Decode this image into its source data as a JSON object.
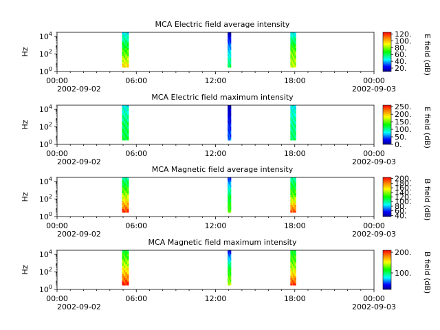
{
  "chart_data": [
    {
      "type": "heatmap",
      "title": "MCA  Electric field average intensity",
      "ylabel": "Hz",
      "y_scale": "log",
      "ylim": [
        1,
        30000
      ],
      "y_ticks": [
        {
          "base": "10",
          "exp": "0"
        },
        {
          "base": "10",
          "exp": "2"
        },
        {
          "base": "10",
          "exp": "4"
        }
      ],
      "x_ticks": [
        "00:00",
        "06:00",
        "12:00",
        "18:00",
        "00:00"
      ],
      "x_dates": {
        "start": "2002-09-02",
        "end": "2002-09-03"
      },
      "xlim": [
        "2002-09-02 00:00",
        "2002-09-03 00:00"
      ],
      "colorbar": {
        "label": "E field (dB)",
        "range": [
          10,
          125
        ],
        "ticks": [
          "20.",
          "40.",
          "60.",
          "80.",
          "100.",
          "120."
        ]
      },
      "bursts": [
        {
          "start": "04:55",
          "end": "05:25",
          "freq_range": [
            3,
            30000
          ],
          "low_db": 95,
          "mid_db": 70,
          "high_db": 45
        },
        {
          "start": "12:55",
          "end": "13:10",
          "freq_range": [
            3,
            30000
          ],
          "low_db": 60,
          "mid_db": 40,
          "high_db": 15
        },
        {
          "start": "17:40",
          "end": "18:05",
          "freq_range": [
            3,
            30000
          ],
          "low_db": 85,
          "mid_db": 75,
          "high_db": 45
        }
      ]
    },
    {
      "type": "heatmap",
      "title": "MCA  Electric field maximum intensity",
      "ylabel": "Hz",
      "y_scale": "log",
      "ylim": [
        1,
        30000
      ],
      "y_ticks": [
        {
          "base": "10",
          "exp": "0"
        },
        {
          "base": "10",
          "exp": "2"
        },
        {
          "base": "10",
          "exp": "4"
        }
      ],
      "x_ticks": [
        "00:00",
        "06:00",
        "12:00",
        "18:00",
        "00:00"
      ],
      "x_dates": {
        "start": "2002-09-02",
        "end": "2002-09-03"
      },
      "xlim": [
        "2002-09-02 00:00",
        "2002-09-03 00:00"
      ],
      "colorbar": {
        "label": "E field (dB)",
        "range": [
          0,
          260
        ],
        "ticks": [
          "0.",
          "50.",
          "100.",
          "150.",
          "200.",
          "250."
        ]
      },
      "bursts": [
        {
          "start": "04:55",
          "end": "05:25",
          "freq_range": [
            3,
            30000
          ],
          "low_db": 120,
          "mid_db": 110,
          "high_db": 80
        },
        {
          "start": "12:55",
          "end": "13:10",
          "freq_range": [
            3,
            30000
          ],
          "low_db": 50,
          "mid_db": 30,
          "high_db": 10
        },
        {
          "start": "17:40",
          "end": "18:05",
          "freq_range": [
            3,
            30000
          ],
          "low_db": 110,
          "mid_db": 100,
          "high_db": 80
        }
      ]
    },
    {
      "type": "heatmap",
      "title": "MCA  Magnetic field average intensity",
      "ylabel": "Hz",
      "y_scale": "log",
      "ylim": [
        1,
        30000
      ],
      "y_ticks": [
        {
          "base": "10",
          "exp": "0"
        },
        {
          "base": "10",
          "exp": "2"
        },
        {
          "base": "10",
          "exp": "4"
        }
      ],
      "x_ticks": [
        "00:00",
        "06:00",
        "12:00",
        "18:00",
        "00:00"
      ],
      "x_dates": {
        "start": "2002-09-02",
        "end": "2002-09-03"
      },
      "xlim": [
        "2002-09-02 00:00",
        "2002-09-03 00:00"
      ],
      "colorbar": {
        "label": "B field (dB)",
        "range": [
          35,
          205
        ],
        "ticks": [
          "40.",
          "60.",
          "80.",
          "100.",
          "120.",
          "140.",
          "160.",
          "180.",
          "200."
        ]
      },
      "bursts": [
        {
          "start": "04:55",
          "end": "05:25",
          "freq_range": [
            3,
            30000
          ],
          "low_db": 195,
          "mid_db": 140,
          "high_db": 100
        },
        {
          "start": "12:55",
          "end": "13:10",
          "freq_range": [
            3,
            30000
          ],
          "low_db": 130,
          "mid_db": 110,
          "high_db": 60
        },
        {
          "start": "17:40",
          "end": "18:05",
          "freq_range": [
            3,
            30000
          ],
          "low_db": 190,
          "mid_db": 130,
          "high_db": 100
        }
      ]
    },
    {
      "type": "heatmap",
      "title": "MCA  Magnetic field maximum intensity",
      "ylabel": "Hz",
      "y_scale": "log",
      "ylim": [
        1,
        30000
      ],
      "y_ticks": [
        {
          "base": "10",
          "exp": "0"
        },
        {
          "base": "10",
          "exp": "2"
        },
        {
          "base": "10",
          "exp": "4"
        }
      ],
      "x_ticks": [
        "00:00",
        "06:00",
        "12:00",
        "18:00",
        "00:00"
      ],
      "x_dates": {
        "start": "2002-09-02",
        "end": "2002-09-03"
      },
      "xlim": [
        "2002-09-02 00:00",
        "2002-09-03 00:00"
      ],
      "colorbar": {
        "label": "B field (dB)",
        "range": [
          20,
          210
        ],
        "ticks": [
          "100.",
          "200."
        ]
      },
      "bursts": [
        {
          "start": "04:55",
          "end": "05:25",
          "freq_range": [
            3,
            30000
          ],
          "low_db": 205,
          "mid_db": 150,
          "high_db": 110
        },
        {
          "start": "12:55",
          "end": "13:10",
          "freq_range": [
            3,
            30000
          ],
          "low_db": 140,
          "mid_db": 110,
          "high_db": 40
        },
        {
          "start": "17:40",
          "end": "18:05",
          "freq_range": [
            3,
            30000
          ],
          "low_db": 200,
          "mid_db": 140,
          "high_db": 110
        }
      ]
    }
  ]
}
